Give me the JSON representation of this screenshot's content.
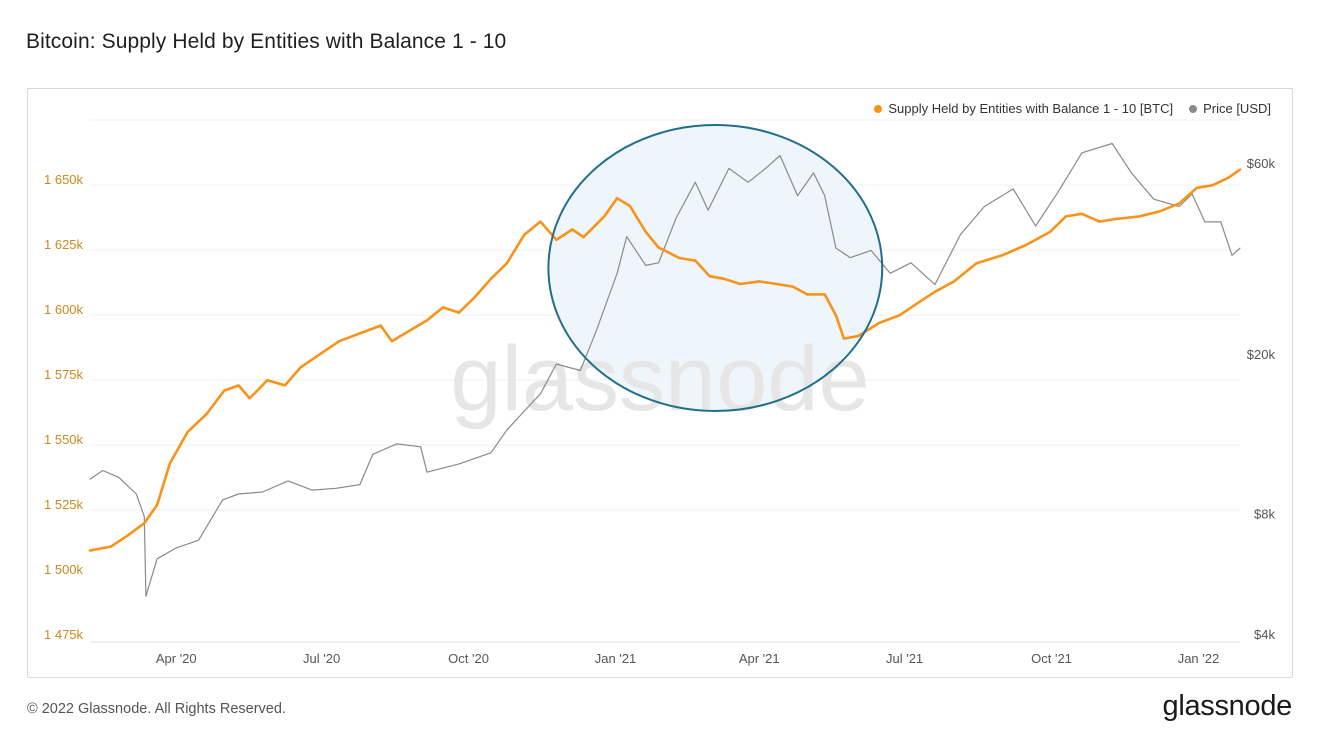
{
  "title": "Bitcoin: Supply Held by Entities with Balance 1 - 10",
  "footer": {
    "copyright": "© 2022 Glassnode. All Rights Reserved.",
    "logo": "glassnode"
  },
  "watermark": "glassnode",
  "colors": {
    "supply": "#f7931a",
    "price": "#8a8a8a",
    "left_axis_text": "#c98a1f",
    "ellipse_fill": "#eef5fb",
    "ellipse_stroke": "#1f6f8b"
  },
  "chart_data": {
    "type": "line",
    "legend_position": "top-right",
    "grid": "horizontal",
    "x_ticks": [
      "Apr '20",
      "Jul '20",
      "Oct '20",
      "Jan '21",
      "Apr '21",
      "Jul '21",
      "Oct '21",
      "Jan '22"
    ],
    "x_range": [
      "2020-02-07",
      "2022-01-27"
    ],
    "y_left": {
      "unit": "BTC",
      "ticks": [
        1475000,
        1500000,
        1525000,
        1550000,
        1575000,
        1600000,
        1625000,
        1650000
      ],
      "tick_labels": [
        "1 475k",
        "1 500k",
        "1 525k",
        "1 550k",
        "1 575k",
        "1 600k",
        "1 625k",
        "1 650k"
      ],
      "range": [
        1475000,
        1660000
      ]
    },
    "y_right": {
      "scale": "log",
      "unit": "USD",
      "ticks": [
        4000,
        8000,
        20000,
        60000
      ],
      "tick_labels": [
        "$4k",
        "$8k",
        "$20k",
        "$60k"
      ]
    },
    "annotation": {
      "type": "ellipse",
      "from": "2020-11-20",
      "to": "2021-06-17",
      "note": "highlighted region"
    },
    "series": [
      {
        "name": "Supply Held by Entities with Balance 1 - 10 [BTC]",
        "axis": "left",
        "points": [
          [
            "2020-02-07",
            1507500
          ],
          [
            "2020-02-20",
            1509000
          ],
          [
            "2020-03-01",
            1513000
          ],
          [
            "2020-03-12",
            1518000
          ],
          [
            "2020-03-20",
            1525000
          ],
          [
            "2020-03-28",
            1541000
          ],
          [
            "2020-04-08",
            1553000
          ],
          [
            "2020-04-20",
            1560000
          ],
          [
            "2020-05-01",
            1569000
          ],
          [
            "2020-05-10",
            1571000
          ],
          [
            "2020-05-17",
            1566000
          ],
          [
            "2020-05-28",
            1573000
          ],
          [
            "2020-06-08",
            1571000
          ],
          [
            "2020-06-18",
            1578000
          ],
          [
            "2020-06-30",
            1583000
          ],
          [
            "2020-07-12",
            1588000
          ],
          [
            "2020-07-25",
            1591000
          ],
          [
            "2020-08-07",
            1594000
          ],
          [
            "2020-08-14",
            1588000
          ],
          [
            "2020-08-25",
            1592000
          ],
          [
            "2020-09-05",
            1596000
          ],
          [
            "2020-09-15",
            1601000
          ],
          [
            "2020-09-25",
            1599000
          ],
          [
            "2020-10-05",
            1605000
          ],
          [
            "2020-10-15",
            1612000
          ],
          [
            "2020-10-25",
            1618000
          ],
          [
            "2020-11-05",
            1629000
          ],
          [
            "2020-11-15",
            1634000
          ],
          [
            "2020-11-25",
            1627000
          ],
          [
            "2020-12-05",
            1631000
          ],
          [
            "2020-12-12",
            1628000
          ],
          [
            "2020-12-25",
            1636000
          ],
          [
            "2021-01-02",
            1643000
          ],
          [
            "2021-01-10",
            1640000
          ],
          [
            "2021-01-20",
            1630000
          ],
          [
            "2021-01-28",
            1624000
          ],
          [
            "2021-02-10",
            1620000
          ],
          [
            "2021-02-20",
            1619000
          ],
          [
            "2021-03-01",
            1613000
          ],
          [
            "2021-03-10",
            1612000
          ],
          [
            "2021-03-20",
            1610000
          ],
          [
            "2021-04-01",
            1611000
          ],
          [
            "2021-04-12",
            1610000
          ],
          [
            "2021-04-22",
            1609000
          ],
          [
            "2021-05-01",
            1606000
          ],
          [
            "2021-05-12",
            1606000
          ],
          [
            "2021-05-19",
            1598000
          ],
          [
            "2021-05-24",
            1589000
          ],
          [
            "2021-06-02",
            1590000
          ],
          [
            "2021-06-15",
            1595000
          ],
          [
            "2021-06-28",
            1598000
          ],
          [
            "2021-07-10",
            1603000
          ],
          [
            "2021-07-20",
            1607000
          ],
          [
            "2021-08-01",
            1611000
          ],
          [
            "2021-08-15",
            1618000
          ],
          [
            "2021-08-31",
            1621000
          ],
          [
            "2021-09-15",
            1625000
          ],
          [
            "2021-09-30",
            1630000
          ],
          [
            "2021-10-10",
            1636000
          ],
          [
            "2021-10-20",
            1637000
          ],
          [
            "2021-10-31",
            1634000
          ],
          [
            "2021-11-10",
            1635000
          ],
          [
            "2021-11-25",
            1636000
          ],
          [
            "2021-12-08",
            1638000
          ],
          [
            "2021-12-20",
            1641000
          ],
          [
            "2021-12-31",
            1647000
          ],
          [
            "2022-01-10",
            1648000
          ],
          [
            "2022-01-20",
            1651000
          ],
          [
            "2022-01-27",
            1654000
          ]
        ]
      },
      {
        "name": "Price [USD]",
        "axis": "right",
        "points": [
          [
            "2020-02-07",
            9800
          ],
          [
            "2020-02-15",
            10300
          ],
          [
            "2020-02-25",
            9900
          ],
          [
            "2020-03-07",
            9000
          ],
          [
            "2020-03-12",
            7900
          ],
          [
            "2020-03-13",
            5000
          ],
          [
            "2020-03-20",
            6200
          ],
          [
            "2020-04-01",
            6600
          ],
          [
            "2020-04-15",
            6900
          ],
          [
            "2020-04-30",
            8700
          ],
          [
            "2020-05-10",
            9000
          ],
          [
            "2020-05-25",
            9100
          ],
          [
            "2020-06-10",
            9700
          ],
          [
            "2020-06-25",
            9200
          ],
          [
            "2020-07-10",
            9300
          ],
          [
            "2020-07-25",
            9500
          ],
          [
            "2020-08-02",
            11300
          ],
          [
            "2020-08-17",
            12000
          ],
          [
            "2020-09-01",
            11800
          ],
          [
            "2020-09-05",
            10200
          ],
          [
            "2020-09-25",
            10700
          ],
          [
            "2020-10-15",
            11400
          ],
          [
            "2020-10-25",
            13000
          ],
          [
            "2020-11-05",
            14500
          ],
          [
            "2020-11-15",
            16000
          ],
          [
            "2020-11-25",
            19000
          ],
          [
            "2020-12-10",
            18300
          ],
          [
            "2020-12-20",
            23000
          ],
          [
            "2021-01-02",
            32000
          ],
          [
            "2021-01-08",
            39500
          ],
          [
            "2021-01-20",
            33500
          ],
          [
            "2021-01-28",
            34000
          ],
          [
            "2021-02-08",
            44000
          ],
          [
            "2021-02-20",
            54000
          ],
          [
            "2021-02-28",
            46000
          ],
          [
            "2021-03-13",
            58500
          ],
          [
            "2021-03-25",
            54000
          ],
          [
            "2021-04-05",
            58500
          ],
          [
            "2021-04-14",
            63000
          ],
          [
            "2021-04-25",
            50000
          ],
          [
            "2021-05-05",
            57000
          ],
          [
            "2021-05-12",
            50000
          ],
          [
            "2021-05-19",
            37000
          ],
          [
            "2021-05-28",
            35000
          ],
          [
            "2021-06-10",
            36500
          ],
          [
            "2021-06-22",
            32000
          ],
          [
            "2021-07-05",
            34000
          ],
          [
            "2021-07-20",
            30000
          ],
          [
            "2021-08-05",
            40000
          ],
          [
            "2021-08-20",
            47000
          ],
          [
            "2021-09-07",
            52000
          ],
          [
            "2021-09-21",
            42000
          ],
          [
            "2021-10-05",
            51000
          ],
          [
            "2021-10-20",
            64000
          ],
          [
            "2021-11-08",
            67500
          ],
          [
            "2021-11-20",
            57000
          ],
          [
            "2021-12-04",
            49000
          ],
          [
            "2021-12-20",
            47000
          ],
          [
            "2021-12-28",
            50500
          ],
          [
            "2022-01-05",
            43000
          ],
          [
            "2022-01-15",
            43000
          ],
          [
            "2022-01-22",
            35500
          ],
          [
            "2022-01-27",
            37000
          ]
        ]
      }
    ]
  }
}
